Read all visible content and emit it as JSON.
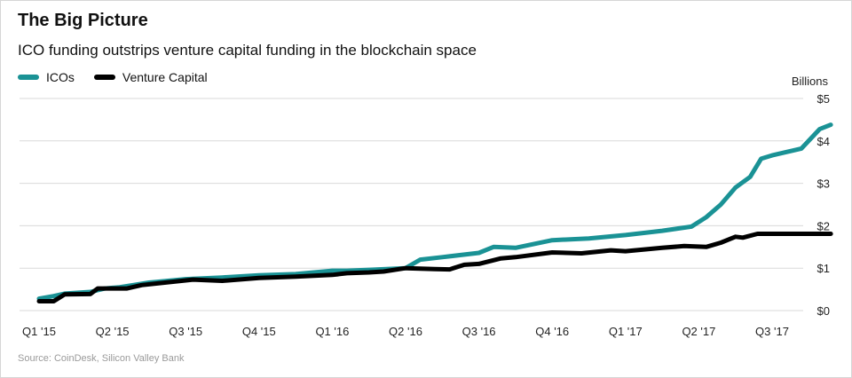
{
  "title": "The Big Picture",
  "subtitle": "ICO funding outstrips venture capital funding in the blockchain space",
  "source": "Source: CoinDesk, Silicon Valley Bank",
  "colors": {
    "ico": "#1a9295",
    "vc": "#000000",
    "grid": "#d9d9d9"
  },
  "chart_data": {
    "type": "line",
    "title": "The Big Picture",
    "subtitle": "ICO funding outstrips venture capital funding in the blockchain space",
    "ylabel": "Billions",
    "ylim": [
      0,
      5
    ],
    "yticks": [
      0,
      1,
      2,
      3,
      4,
      5
    ],
    "ytick_labels": [
      "$0",
      "$1",
      "$2",
      "$3",
      "$4",
      "$5"
    ],
    "xlim": [
      0,
      11
    ],
    "xticks": [
      0,
      1,
      2,
      3,
      4,
      5,
      6,
      7,
      8,
      9,
      10
    ],
    "xtick_labels": [
      "Q1 '15",
      "Q2 '15",
      "Q3 '15",
      "Q4 '15",
      "Q1 '16",
      "Q2 '16",
      "Q3 '16",
      "Q4 '16",
      "Q1 '17",
      "Q2 '17",
      "Q3 '17"
    ],
    "legend": "top-left",
    "grid": true,
    "series": [
      {
        "name": "ICOs",
        "x": [
          0,
          0.2,
          0.35,
          0.7,
          0.9,
          1.1,
          1.5,
          2.0,
          2.5,
          3.0,
          3.5,
          4.0,
          4.2,
          4.5,
          5.0,
          5.2,
          5.5,
          6.0,
          6.2,
          6.5,
          7.0,
          7.5,
          8.0,
          8.5,
          8.9,
          9.1,
          9.3,
          9.5,
          9.7,
          9.85,
          10.0,
          10.4,
          10.65,
          10.8
        ],
        "values": [
          0.28,
          0.34,
          0.4,
          0.44,
          0.52,
          0.55,
          0.66,
          0.74,
          0.78,
          0.83,
          0.86,
          0.94,
          0.94,
          0.96,
          1.0,
          1.2,
          1.26,
          1.36,
          1.5,
          1.48,
          1.66,
          1.7,
          1.78,
          1.88,
          1.98,
          2.2,
          2.5,
          2.9,
          3.15,
          3.58,
          3.66,
          3.82,
          4.28,
          4.38
        ]
      },
      {
        "name": "Venture Capital",
        "x": [
          0,
          0.2,
          0.35,
          0.7,
          0.8,
          1.2,
          1.4,
          2.1,
          2.5,
          3.0,
          3.5,
          4.0,
          4.2,
          4.5,
          4.7,
          5.0,
          5.4,
          5.6,
          5.8,
          6.0,
          6.3,
          6.5,
          7.0,
          7.4,
          7.8,
          8.0,
          8.5,
          8.8,
          9.1,
          9.3,
          9.5,
          9.6,
          9.8,
          10.2,
          10.8
        ],
        "values": [
          0.22,
          0.22,
          0.38,
          0.39,
          0.52,
          0.52,
          0.6,
          0.73,
          0.7,
          0.77,
          0.8,
          0.84,
          0.88,
          0.9,
          0.92,
          1.0,
          0.98,
          0.97,
          1.08,
          1.1,
          1.23,
          1.26,
          1.37,
          1.35,
          1.42,
          1.4,
          1.48,
          1.52,
          1.5,
          1.6,
          1.74,
          1.72,
          1.81,
          1.81,
          1.81
        ]
      }
    ]
  }
}
